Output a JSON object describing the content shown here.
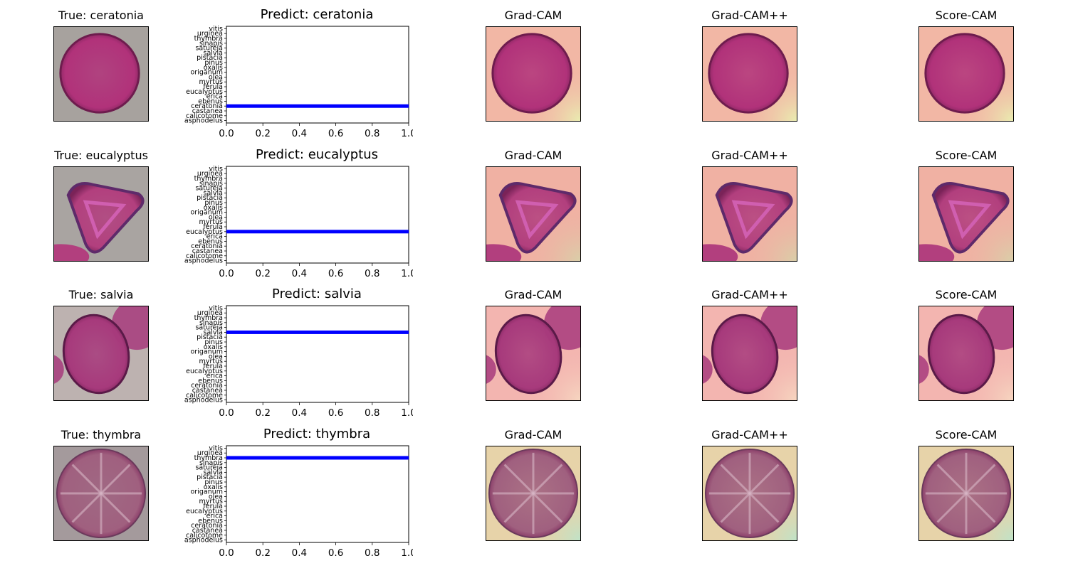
{
  "class_order": [
    "asphodelus",
    "calicotome",
    "castanea",
    "ceratonia",
    "ebenus",
    "erica",
    "eucalyptus",
    "ferula",
    "myrtus",
    "olea",
    "origanum",
    "oxalis",
    "pinus",
    "pistacia",
    "salvia",
    "satureja",
    "sinapis",
    "thymbra",
    "urginea",
    "vitis"
  ],
  "colors": {
    "bar": "#0000ff"
  },
  "cam_titles": [
    "Grad-CAM",
    "Grad-CAM++",
    "Score-CAM"
  ],
  "rows": [
    {
      "true_label": "True: ceratonia",
      "pred_label": "Predict: ceratonia",
      "shape": "round",
      "bg": "#a7a29e",
      "cell": "#b1327a",
      "cam_bg": "#f2b7a5",
      "cam_corner": "#e9edb0",
      "chart_data": {
        "type": "bar",
        "orientation": "horizontal",
        "categories": [
          "asphodelus",
          "calicotome",
          "castanea",
          "ceratonia",
          "ebenus",
          "erica",
          "eucalyptus",
          "ferula",
          "myrtus",
          "olea",
          "origanum",
          "oxalis",
          "pinus",
          "pistacia",
          "salvia",
          "satureja",
          "sinapis",
          "thymbra",
          "urginea",
          "vitis"
        ],
        "values": [
          0,
          0,
          0,
          1.0,
          0,
          0,
          0,
          0,
          0,
          0,
          0,
          0,
          0,
          0,
          0,
          0,
          0,
          0,
          0,
          0
        ],
        "xlim": [
          0,
          1.0
        ],
        "xticks": [
          "0.0",
          "0.2",
          "0.4",
          "0.6",
          "0.8",
          "1.0"
        ]
      }
    },
    {
      "true_label": "True: eucalyptus",
      "pred_label": "Predict: eucalyptus",
      "shape": "triangle",
      "bg": "#a9a4a1",
      "cell": "#b23f7e",
      "cam_bg": "#f0b1a3",
      "cam_corner": "#d9cfa8",
      "chart_data": {
        "type": "bar",
        "orientation": "horizontal",
        "categories": [
          "asphodelus",
          "calicotome",
          "castanea",
          "ceratonia",
          "ebenus",
          "erica",
          "eucalyptus",
          "ferula",
          "myrtus",
          "olea",
          "origanum",
          "oxalis",
          "pinus",
          "pistacia",
          "salvia",
          "satureja",
          "sinapis",
          "thymbra",
          "urginea",
          "vitis"
        ],
        "values": [
          0,
          0,
          0,
          0,
          0,
          0,
          1.0,
          0,
          0,
          0,
          0,
          0,
          0,
          0,
          0,
          0,
          0,
          0,
          0,
          0
        ],
        "xlim": [
          0,
          1.0
        ],
        "xticks": [
          "0.0",
          "0.2",
          "0.4",
          "0.6",
          "0.8",
          "1.0"
        ]
      }
    },
    {
      "true_label": "True: salvia",
      "pred_label": "Predict: salvia",
      "shape": "oval",
      "bg": "#bdb2b0",
      "cell": "#a73a7c",
      "cam_bg": "#f3b5b0",
      "cam_corner": "#f6d6c0",
      "chart_data": {
        "type": "bar",
        "orientation": "horizontal",
        "categories": [
          "asphodelus",
          "calicotome",
          "castanea",
          "ceratonia",
          "ebenus",
          "erica",
          "eucalyptus",
          "ferula",
          "myrtus",
          "olea",
          "origanum",
          "oxalis",
          "pinus",
          "pistacia",
          "salvia",
          "satureja",
          "sinapis",
          "thymbra",
          "urginea",
          "vitis"
        ],
        "values": [
          0,
          0,
          0,
          0,
          0,
          0,
          0,
          0,
          0,
          0,
          0,
          0,
          0,
          0,
          1.0,
          0,
          0,
          0,
          0,
          0
        ],
        "xlim": [
          0,
          1.0
        ],
        "xticks": [
          "0.0",
          "0.2",
          "0.4",
          "0.6",
          "0.8",
          "1.0"
        ]
      }
    },
    {
      "true_label": "True: thymbra",
      "pred_label": "Predict: thymbra",
      "shape": "rayed",
      "bg": "#a49a9c",
      "cell": "#a0607f",
      "cam_bg": "#e7d3a9",
      "cam_corner": "#bfe3c8",
      "chart_data": {
        "type": "bar",
        "orientation": "horizontal",
        "categories": [
          "asphodelus",
          "calicotome",
          "castanea",
          "ceratonia",
          "ebenus",
          "erica",
          "eucalyptus",
          "ferula",
          "myrtus",
          "olea",
          "origanum",
          "oxalis",
          "pinus",
          "pistacia",
          "salvia",
          "satureja",
          "sinapis",
          "thymbra",
          "urginea",
          "vitis"
        ],
        "values": [
          0,
          0,
          0,
          0,
          0,
          0,
          0,
          0,
          0,
          0,
          0,
          0,
          0,
          0,
          0,
          0,
          0,
          1.0,
          0,
          0
        ],
        "xlim": [
          0,
          1.0
        ],
        "xticks": [
          "0.0",
          "0.2",
          "0.4",
          "0.6",
          "0.8",
          "1.0"
        ]
      }
    }
  ]
}
